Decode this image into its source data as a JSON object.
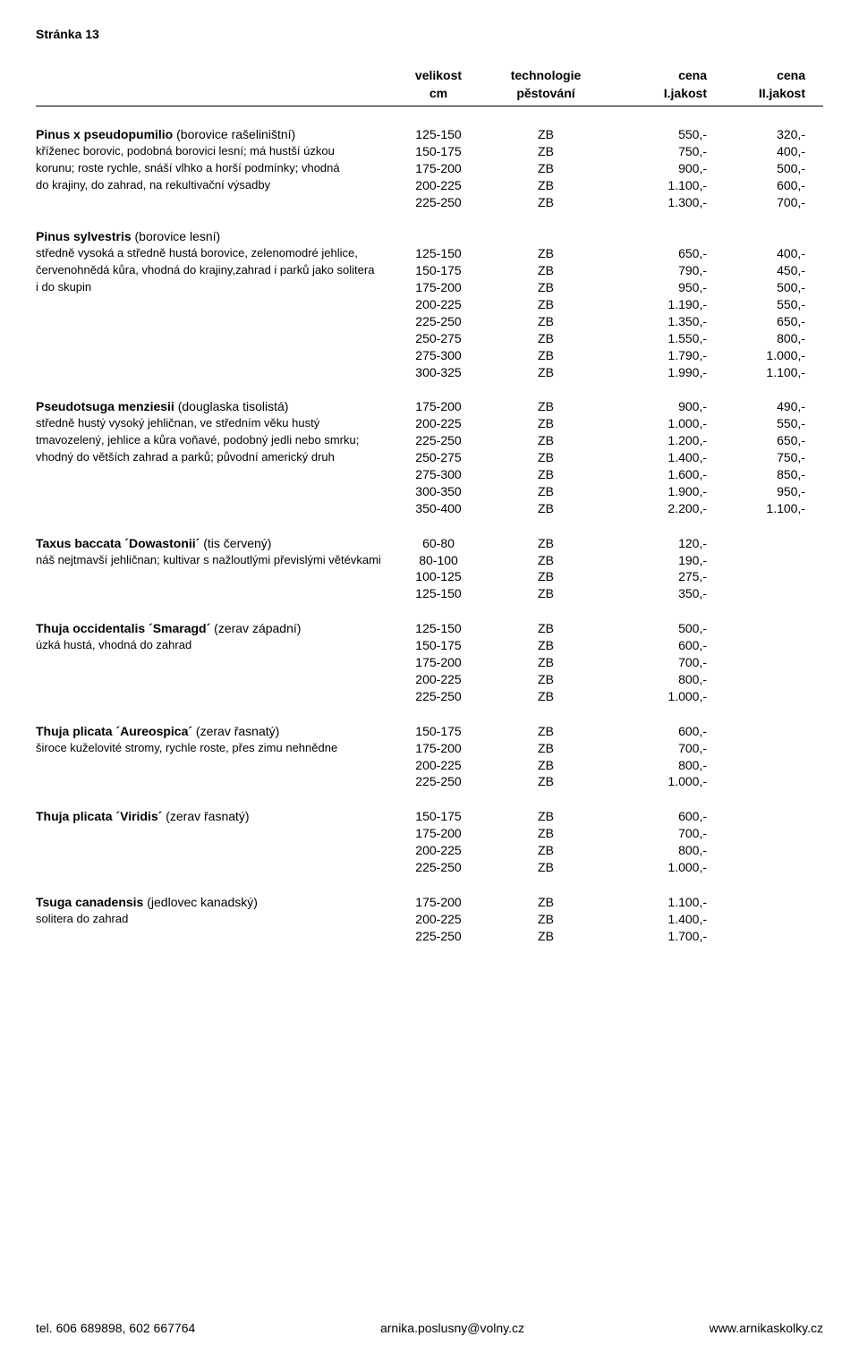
{
  "page_header": "Stránka 13",
  "columns": {
    "h1": "",
    "h2": "velikost",
    "h3": "technologie",
    "h4": "cena",
    "h5": "cena",
    "s1": "",
    "s2": "cm",
    "s3": "pěstování",
    "s4": "I.jakost",
    "s5": "II.jakost"
  },
  "sections": [
    {
      "descLines": [
        {
          "bold": "Pinus x pseudopumilio",
          "plain": " (borovice rašeliništní)"
        },
        {
          "plain": "kříženec borovic, podobná borovici lesní; má hustší úzkou"
        },
        {
          "plain": "korunu; roste rychle, snáší vlhko a horší podmínky; vhodná"
        },
        {
          "plain": "do krajiny, do zahrad, na rekultivační výsadby"
        }
      ],
      "rows": [
        {
          "size": "125-150",
          "tech": "ZB",
          "p1": "550,-",
          "p2": "320,-"
        },
        {
          "size": "150-175",
          "tech": "ZB",
          "p1": "750,-",
          "p2": "400,-"
        },
        {
          "size": "175-200",
          "tech": "ZB",
          "p1": "900,-",
          "p2": "500,-"
        },
        {
          "size": "200-225",
          "tech": "ZB",
          "p1": "1.100,-",
          "p2": "600,-"
        },
        {
          "size": "225-250",
          "tech": "ZB",
          "p1": "1.300,-",
          "p2": "700,-"
        }
      ]
    },
    {
      "descLines": [
        {
          "bold": "Pinus sylvestris",
          "plain": " (borovice lesní)"
        },
        {
          "plain": "středně vysoká a středně hustá borovice, zelenomodré jehlice,"
        },
        {
          "plain": "červenohnědá kůra, vhodná do krajiny,zahrad i parků jako solitera"
        },
        {
          "plain": "i do skupin"
        }
      ],
      "rows": [
        {
          "size": "",
          "tech": "",
          "p1": "",
          "p2": ""
        },
        {
          "size": "125-150",
          "tech": "ZB",
          "p1": "650,-",
          "p2": "400,-"
        },
        {
          "size": "150-175",
          "tech": "ZB",
          "p1": "790,-",
          "p2": "450,-"
        },
        {
          "size": "175-200",
          "tech": "ZB",
          "p1": "950,-",
          "p2": "500,-"
        },
        {
          "size": "200-225",
          "tech": "ZB",
          "p1": "1.190,-",
          "p2": "550,-"
        },
        {
          "size": "225-250",
          "tech": "ZB",
          "p1": "1.350,-",
          "p2": "650,-"
        },
        {
          "size": "250-275",
          "tech": "ZB",
          "p1": "1.550,-",
          "p2": "800,-"
        },
        {
          "size": "275-300",
          "tech": "ZB",
          "p1": "1.790,-",
          "p2": "1.000,-"
        },
        {
          "size": "300-325",
          "tech": "ZB",
          "p1": "1.990,-",
          "p2": "1.100,-"
        }
      ]
    },
    {
      "descLines": [
        {
          "bold": "Pseudotsuga menziesii",
          "plain": " (douglaska tisolistá)"
        },
        {
          "plain": "středně hustý vysoký jehličnan, ve středním věku hustý"
        },
        {
          "plain": "tmavozelený, jehlice a kůra voňavé, podobný jedli nebo smrku;"
        },
        {
          "plain": "vhodný do větších zahrad a parků; původní americký druh"
        }
      ],
      "rows": [
        {
          "size": "175-200",
          "tech": "ZB",
          "p1": "900,-",
          "p2": "490,-"
        },
        {
          "size": "200-225",
          "tech": "ZB",
          "p1": "1.000,-",
          "p2": "550,-"
        },
        {
          "size": "225-250",
          "tech": "ZB",
          "p1": "1.200,-",
          "p2": "650,-"
        },
        {
          "size": "250-275",
          "tech": "ZB",
          "p1": "1.400,-",
          "p2": "750,-"
        },
        {
          "size": "275-300",
          "tech": "ZB",
          "p1": "1.600,-",
          "p2": "850,-"
        },
        {
          "size": "300-350",
          "tech": "ZB",
          "p1": "1.900,-",
          "p2": "950,-"
        },
        {
          "size": "350-400",
          "tech": "ZB",
          "p1": "2.200,-",
          "p2": "1.100,-"
        }
      ]
    },
    {
      "descLines": [
        {
          "bold": "Taxus baccata ´Dowastonii´",
          "plain": " (tis červený)"
        },
        {
          "plain": "náš nejtmavší jehličnan; kultivar s nažloutlými převislými větévkami"
        }
      ],
      "rows": [
        {
          "size": "60-80",
          "tech": "ZB",
          "p1": "120,-",
          "p2": ""
        },
        {
          "size": "80-100",
          "tech": "ZB",
          "p1": "190,-",
          "p2": ""
        },
        {
          "size": "100-125",
          "tech": "ZB",
          "p1": "275,-",
          "p2": ""
        },
        {
          "size": "125-150",
          "tech": "ZB",
          "p1": "350,-",
          "p2": ""
        }
      ]
    },
    {
      "descLines": [
        {
          "bold": "Thuja occidentalis ´Smaragd´",
          "plain": " (zerav západní)"
        },
        {
          "plain": "úzká hustá, vhodná do zahrad"
        }
      ],
      "rows": [
        {
          "size": "125-150",
          "tech": "ZB",
          "p1": "500,-",
          "p2": ""
        },
        {
          "size": "150-175",
          "tech": "ZB",
          "p1": "600,-",
          "p2": ""
        },
        {
          "size": "175-200",
          "tech": "ZB",
          "p1": "700,-",
          "p2": ""
        },
        {
          "size": "200-225",
          "tech": "ZB",
          "p1": "800,-",
          "p2": ""
        },
        {
          "size": "225-250",
          "tech": "ZB",
          "p1": "1.000,-",
          "p2": ""
        }
      ]
    },
    {
      "descLines": [
        {
          "bold": "Thuja plicata ´Aureospica´",
          "plain": " (zerav řasnatý)"
        },
        {
          "plain": "široce kuželovité stromy, rychle roste, přes zimu nehnědne"
        }
      ],
      "rows": [
        {
          "size": "150-175",
          "tech": "ZB",
          "p1": "600,-",
          "p2": ""
        },
        {
          "size": "175-200",
          "tech": "ZB",
          "p1": "700,-",
          "p2": ""
        },
        {
          "size": "200-225",
          "tech": "ZB",
          "p1": "800,-",
          "p2": ""
        },
        {
          "size": "225-250",
          "tech": "ZB",
          "p1": "1.000,-",
          "p2": ""
        }
      ]
    },
    {
      "descLines": [
        {
          "bold": "Thuja plicata ´Viridis´",
          "plain": " (zerav řasnatý)"
        }
      ],
      "rows": [
        {
          "size": "150-175",
          "tech": "ZB",
          "p1": "600,-",
          "p2": ""
        },
        {
          "size": "175-200",
          "tech": "ZB",
          "p1": "700,-",
          "p2": ""
        },
        {
          "size": "200-225",
          "tech": "ZB",
          "p1": "800,-",
          "p2": ""
        },
        {
          "size": "225-250",
          "tech": "ZB",
          "p1": "1.000,-",
          "p2": ""
        }
      ]
    },
    {
      "descLines": [
        {
          "bold": "Tsuga canadensis",
          "plain": " (jedlovec kanadský)"
        },
        {
          "plain": "solitera do zahrad"
        }
      ],
      "rows": [
        {
          "size": "175-200",
          "tech": "ZB",
          "p1": "1.100,-",
          "p2": ""
        },
        {
          "size": "200-225",
          "tech": "ZB",
          "p1": "1.400,-",
          "p2": ""
        },
        {
          "size": "225-250",
          "tech": "ZB",
          "p1": "1.700,-",
          "p2": ""
        }
      ]
    }
  ],
  "footer": {
    "left": "tel. 606 689898, 602 667764",
    "center": "arnika.poslusny@volny.cz",
    "right": "www.arnikaskolky.cz"
  }
}
